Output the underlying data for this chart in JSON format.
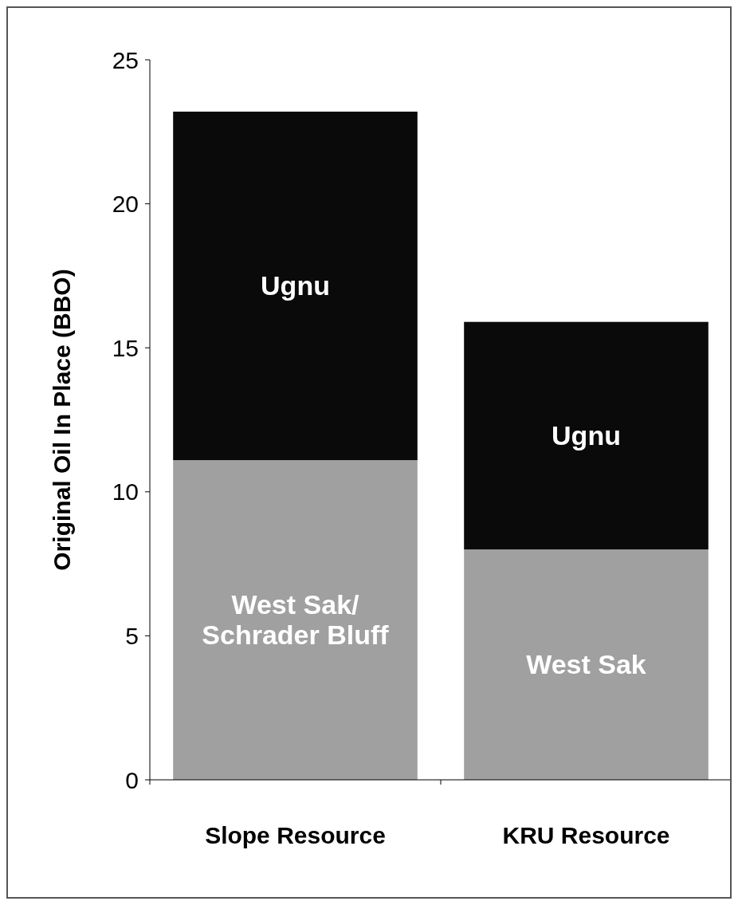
{
  "chart_data": {
    "type": "bar",
    "stacked": true,
    "ylabel": "Original Oil In Place (BBO)",
    "categories": [
      "Slope Resource",
      "KRU Resource"
    ],
    "series": [
      {
        "color": "#a0a0a0",
        "values": [
          11.1,
          8.0
        ],
        "value_labels": [
          "West Sak/\nSchrader Bluff",
          "West Sak"
        ]
      },
      {
        "color": "#0a0a0a",
        "values": [
          12.1,
          7.9
        ],
        "value_labels": [
          "Ugnu",
          "Ugnu"
        ]
      }
    ],
    "ylim": [
      0,
      25
    ],
    "yticks": [
      0,
      5,
      10,
      15,
      20,
      25
    ],
    "grid": false
  }
}
